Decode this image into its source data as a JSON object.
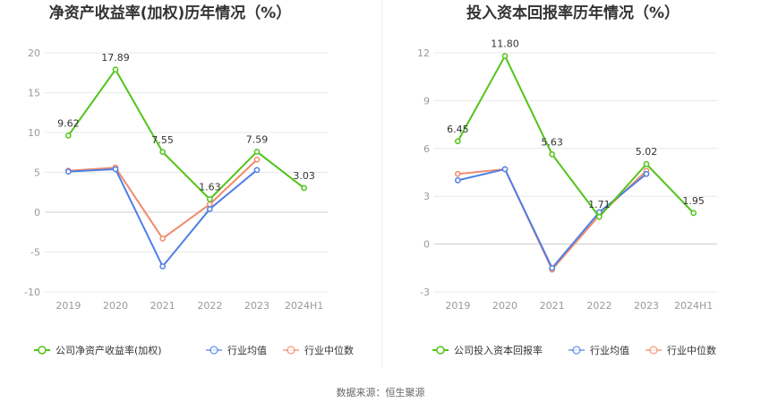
{
  "source_text": "数据来源：恒生聚源",
  "colors": {
    "company": "#52c41a",
    "avg": "#4f7fe5",
    "median": "#f08a6b",
    "grid": "#e8e8e8",
    "divider": "#eeeeee"
  },
  "chart_data": [
    {
      "type": "line",
      "title": "净资产收益率(加权)历年情况（%）",
      "categories": [
        "2019",
        "2020",
        "2021",
        "2022",
        "2023",
        "2024H1"
      ],
      "ylim": [
        -10,
        20
      ],
      "yticks": [
        20,
        15,
        10,
        5,
        0,
        -5,
        -10
      ],
      "grid": true,
      "legend_position": "bottom",
      "series": [
        {
          "name": "公司净资产收益率(加权)",
          "key": "company",
          "values": [
            9.62,
            17.89,
            7.55,
            1.63,
            7.59,
            3.03
          ],
          "labels": [
            "9.62",
            "17.89",
            "7.55",
            "1.63",
            "7.59",
            "3.03"
          ]
        },
        {
          "name": "行业均值",
          "key": "avg",
          "values": [
            5.1,
            5.4,
            -6.8,
            0.4,
            5.3,
            null
          ]
        },
        {
          "name": "行业中位数",
          "key": "median",
          "values": [
            5.2,
            5.6,
            -3.3,
            1.0,
            6.6,
            null
          ]
        }
      ]
    },
    {
      "type": "line",
      "title": "投入资本回报率历年情况（%）",
      "categories": [
        "2019",
        "2020",
        "2021",
        "2022",
        "2023",
        "2024H1"
      ],
      "ylim": [
        -3,
        12
      ],
      "yticks": [
        12,
        9,
        6,
        3,
        0,
        -3
      ],
      "grid": true,
      "legend_position": "bottom",
      "series": [
        {
          "name": "公司投入资本回报率",
          "key": "company",
          "values": [
            6.45,
            11.8,
            5.63,
            1.71,
            5.02,
            1.95
          ],
          "labels": [
            "6.45",
            "11.80",
            "5.63",
            "1.71",
            "5.02",
            "1.95"
          ]
        },
        {
          "name": "行业均值",
          "key": "avg",
          "values": [
            4.0,
            4.7,
            -1.5,
            2.0,
            4.4,
            null
          ]
        },
        {
          "name": "行业中位数",
          "key": "median",
          "values": [
            4.4,
            4.7,
            -1.6,
            1.8,
            4.6,
            null
          ]
        }
      ]
    }
  ]
}
